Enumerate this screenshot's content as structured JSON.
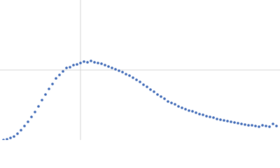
{
  "chart_data": {
    "type": "scatter",
    "x": [
      5,
      10,
      15,
      20,
      25,
      30,
      35,
      40,
      45,
      50,
      55,
      60,
      65,
      70,
      75,
      80,
      85,
      90,
      95,
      100,
      105,
      110,
      115,
      120,
      125,
      130,
      135,
      140,
      145,
      150,
      155,
      160,
      165,
      170,
      175,
      180,
      185,
      190,
      195,
      200,
      205,
      210,
      215,
      220,
      225,
      230,
      235,
      240,
      245,
      250,
      255,
      260,
      265,
      270,
      275,
      280,
      285,
      290,
      295,
      300,
      305,
      310,
      315,
      320,
      325,
      330,
      335,
      340,
      345,
      350,
      355,
      360,
      365,
      370,
      375,
      380,
      385,
      390,
      395
    ],
    "values": [
      0,
      1,
      3,
      5,
      9,
      14,
      20,
      26,
      33,
      40,
      48,
      57,
      65,
      73,
      80,
      88,
      93,
      98,
      103,
      104,
      107,
      108,
      110,
      112,
      111,
      113,
      111,
      110,
      109,
      107,
      105,
      103,
      101,
      99,
      97,
      94,
      92,
      89,
      86,
      83,
      79,
      76,
      72,
      69,
      65,
      62,
      59,
      55,
      53,
      51,
      48,
      46,
      44,
      42,
      41,
      39,
      37,
      36,
      34,
      33,
      32,
      30,
      29,
      28,
      27,
      26,
      25,
      24,
      23,
      22,
      21,
      21,
      20,
      19,
      21,
      20,
      19,
      23,
      20
    ],
    "color": "#3a66b5",
    "xlim": [
      0,
      400
    ],
    "ylim": [
      0,
      200
    ],
    "xticks": [
      115
    ],
    "yticks": [
      100
    ],
    "grid": true
  }
}
